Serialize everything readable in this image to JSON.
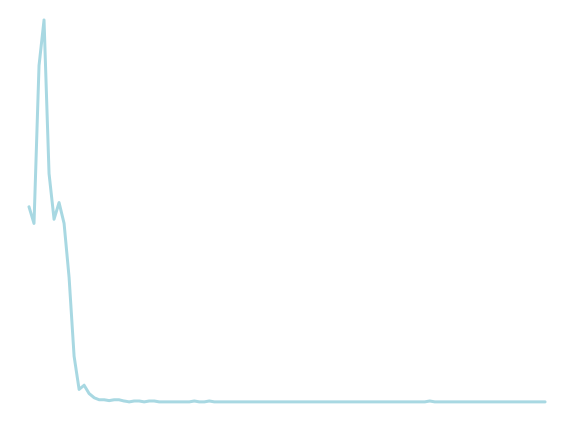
{
  "colors": {
    "background": "#ffffff",
    "line": "#a8d8e2"
  },
  "chart_data": {
    "type": "line",
    "title": "",
    "xlabel": "",
    "ylabel": "",
    "grid": false,
    "legend": "none",
    "x": [
      0,
      1,
      2,
      3,
      4,
      5,
      6,
      7,
      8,
      9,
      10,
      11,
      12,
      13,
      14,
      15,
      16,
      17,
      18,
      19,
      20,
      21,
      22,
      23,
      24,
      25,
      26,
      27,
      28,
      29,
      30,
      31,
      32,
      33,
      34,
      35,
      36,
      37,
      38,
      39,
      40,
      41,
      42,
      43,
      44,
      45,
      46,
      47,
      48,
      49,
      50,
      51,
      52,
      53,
      54,
      55,
      56,
      57,
      58,
      59,
      60,
      61,
      62,
      63,
      64,
      65,
      66,
      67,
      68,
      69,
      70,
      71,
      72,
      73,
      74,
      75,
      76,
      77,
      78,
      79,
      80,
      81,
      82,
      83,
      84,
      85,
      86,
      87,
      88,
      89,
      90,
      91,
      92,
      93,
      94,
      95,
      96,
      97,
      98,
      99,
      100,
      101,
      102,
      103
    ],
    "series": [
      {
        "values": [
          48,
          44,
          82,
          93,
          56,
          45,
          49,
          44,
          31,
          12,
          4,
          5,
          3,
          2,
          1.5,
          1.5,
          1.3,
          1.5,
          1.5,
          1.2,
          1.0,
          1.2,
          1.2,
          1.0,
          1.2,
          1.2,
          1.0,
          1.0,
          1.0,
          1.0,
          1.0,
          1.0,
          1.0,
          1.2,
          1.0,
          1.0,
          1.2,
          1.0,
          1.0,
          1.0,
          1.0,
          1.0,
          1.0,
          1.0,
          1.0,
          1.0,
          1.0,
          1.0,
          1.0,
          1.0,
          1.0,
          1.0,
          1.0,
          1.0,
          1.0,
          1.0,
          1.0,
          1.0,
          1.0,
          1.0,
          1.0,
          1.0,
          1.0,
          1.0,
          1.0,
          1.0,
          1.0,
          1.0,
          1.0,
          1.0,
          1.0,
          1.0,
          1.0,
          1.0,
          1.0,
          1.0,
          1.0,
          1.0,
          1.0,
          1.0,
          1.2,
          1.0,
          1.0,
          1.0,
          1.0,
          1.0,
          1.0,
          1.0,
          1.0,
          1.0,
          1.0,
          1.0,
          1.0,
          1.0,
          1.0,
          1.0,
          1.0,
          1.0,
          1.0,
          1.0,
          1.0,
          1.0,
          1.0,
          1.0
        ]
      }
    ],
    "xlim": [
      0,
      103
    ],
    "ylim": [
      0,
      93
    ]
  }
}
